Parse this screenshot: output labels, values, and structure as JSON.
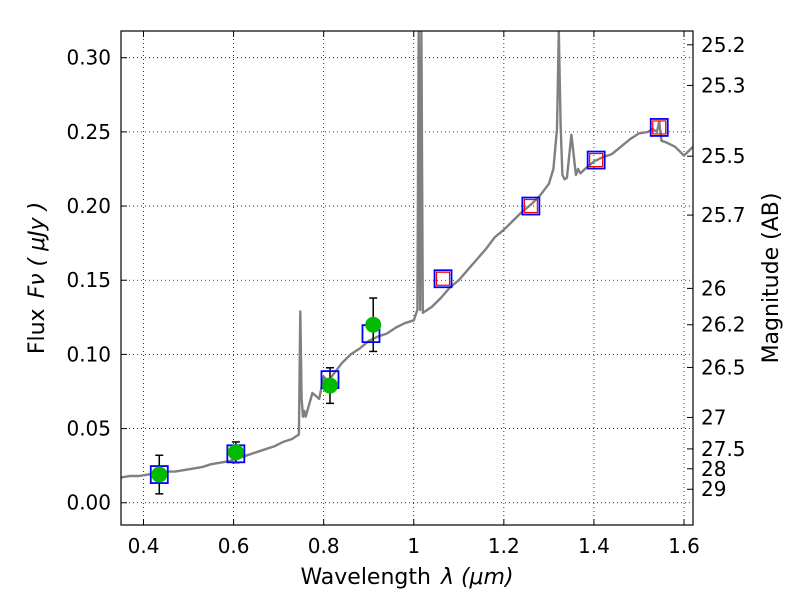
{
  "chart_data": {
    "type": "line",
    "title": "",
    "xlabel": "Wavelength",
    "xlabel_symbol": "λ (μm)",
    "ylabel": "Flux",
    "ylabel_symbol": "Fν ( μJy )",
    "ylabel_right": "Magnitude (AB)",
    "xlim": [
      0.35,
      1.62
    ],
    "ylim": [
      -0.015,
      0.318
    ],
    "grid": true,
    "x_ticks": [
      {
        "value": 0.4,
        "label": "0.4"
      },
      {
        "value": 0.6,
        "label": "0.6"
      },
      {
        "value": 0.8,
        "label": "0.8"
      },
      {
        "value": 1.0,
        "label": "1"
      },
      {
        "value": 1.2,
        "label": "1.2"
      },
      {
        "value": 1.4,
        "label": "1.4"
      },
      {
        "value": 1.6,
        "label": "1.6"
      }
    ],
    "y_ticks": [
      {
        "value": 0.0,
        "label": "0.00"
      },
      {
        "value": 0.05,
        "label": "0.05"
      },
      {
        "value": 0.1,
        "label": "0.10"
      },
      {
        "value": 0.15,
        "label": "0.15"
      },
      {
        "value": 0.2,
        "label": "0.20"
      },
      {
        "value": 0.25,
        "label": "0.25"
      },
      {
        "value": 0.3,
        "label": "0.30"
      }
    ],
    "magnitude_ticks": [
      {
        "value": 0.3087,
        "label": "25.2"
      },
      {
        "value": 0.2813,
        "label": "25.3"
      },
      {
        "value": 0.2336,
        "label": "25.5"
      },
      {
        "value": 0.1939,
        "label": "25.7"
      },
      {
        "value": 0.1445,
        "label": "26"
      },
      {
        "value": 0.12,
        "label": "26.2"
      },
      {
        "value": 0.0912,
        "label": "26.5"
      },
      {
        "value": 0.0575,
        "label": "27"
      },
      {
        "value": 0.0363,
        "label": "27.5"
      },
      {
        "value": 0.0229,
        "label": "28"
      },
      {
        "value": 0.0091,
        "label": "29"
      }
    ],
    "colors": {
      "spectrum": "#808080",
      "observed": "#00bb00",
      "model_box": "#0000ff",
      "upper_limit_box": "#ff0000",
      "error_bar": "#000000",
      "grid": "#000000"
    },
    "series": [
      {
        "name": "Model spectrum",
        "kind": "line",
        "x": [
          0.35,
          0.37,
          0.39,
          0.41,
          0.43,
          0.45,
          0.47,
          0.49,
          0.51,
          0.53,
          0.55,
          0.57,
          0.59,
          0.61,
          0.63,
          0.65,
          0.67,
          0.69,
          0.71,
          0.73,
          0.745,
          0.748,
          0.751,
          0.754,
          0.757,
          0.76,
          0.775,
          0.79,
          0.8,
          0.81,
          0.82,
          0.84,
          0.86,
          0.88,
          0.9,
          0.92,
          0.94,
          0.96,
          0.98,
          1.0,
          1.008,
          1.011,
          1.014,
          1.017,
          1.02,
          1.04,
          1.06,
          1.08,
          1.1,
          1.12,
          1.14,
          1.16,
          1.18,
          1.2,
          1.22,
          1.24,
          1.26,
          1.28,
          1.3,
          1.31,
          1.318,
          1.322,
          1.326,
          1.33,
          1.335,
          1.34,
          1.35,
          1.36,
          1.365,
          1.37,
          1.38,
          1.4,
          1.42,
          1.44,
          1.46,
          1.48,
          1.5,
          1.52,
          1.53,
          1.54,
          1.545,
          1.55,
          1.56,
          1.58,
          1.6,
          1.62
        ],
        "y": [
          0.017,
          0.018,
          0.018,
          0.019,
          0.02,
          0.021,
          0.021,
          0.022,
          0.023,
          0.024,
          0.026,
          0.027,
          0.028,
          0.03,
          0.032,
          0.034,
          0.036,
          0.038,
          0.041,
          0.043,
          0.046,
          0.129,
          0.07,
          0.058,
          0.062,
          0.058,
          0.074,
          0.07,
          0.085,
          0.082,
          0.086,
          0.094,
          0.1,
          0.104,
          0.109,
          0.112,
          0.114,
          0.118,
          0.121,
          0.123,
          0.13,
          0.318,
          0.13,
          0.318,
          0.128,
          0.132,
          0.138,
          0.145,
          0.15,
          0.157,
          0.164,
          0.171,
          0.179,
          0.184,
          0.19,
          0.196,
          0.201,
          0.207,
          0.215,
          0.225,
          0.252,
          0.318,
          0.255,
          0.221,
          0.218,
          0.219,
          0.248,
          0.221,
          0.225,
          0.222,
          0.225,
          0.23,
          0.233,
          0.235,
          0.24,
          0.245,
          0.249,
          0.25,
          0.252,
          0.25,
          0.257,
          0.244,
          0.243,
          0.24,
          0.234,
          0.24
        ]
      },
      {
        "name": "Observed photometry",
        "kind": "points_with_errors",
        "x": [
          0.435,
          0.605,
          0.814,
          0.91
        ],
        "y": [
          0.019,
          0.034,
          0.079,
          0.12
        ],
        "yerr": [
          0.013,
          0.007,
          0.012,
          0.018
        ]
      },
      {
        "name": "Model photometry",
        "kind": "boxes",
        "x": [
          0.435,
          0.605,
          0.814,
          0.905,
          1.065,
          1.26,
          1.405,
          1.545
        ],
        "y": [
          0.019,
          0.033,
          0.083,
          0.114,
          0.151,
          0.2,
          0.231,
          0.253
        ]
      },
      {
        "name": "Upper limits",
        "kind": "boxes",
        "x": [
          1.065,
          1.26,
          1.405,
          1.545
        ],
        "y": [
          0.151,
          0.2,
          0.231,
          0.253
        ]
      }
    ]
  }
}
